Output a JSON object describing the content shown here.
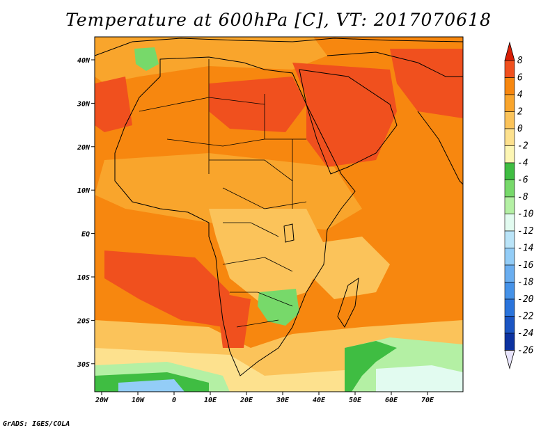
{
  "title": "Temperature at 600hPa [C], VT: 2017070618",
  "credit": "GrADS: IGES/COLA",
  "map": {
    "lon_ticks": [
      "20W",
      "10W",
      "0",
      "10E",
      "20E",
      "30E",
      "40E",
      "50E",
      "60E",
      "70E"
    ],
    "lat_ticks": [
      "40N",
      "30N",
      "20N",
      "10N",
      "EQ",
      "10S",
      "20S",
      "30S"
    ]
  },
  "colorbar": {
    "labels": [
      "8",
      "6",
      "4",
      "2",
      "0",
      "-2",
      "-4",
      "-6",
      "-8",
      "-10",
      "-12",
      "-14",
      "-16",
      "-18",
      "-20",
      "-22",
      "-24",
      "-26"
    ],
    "colors": {
      "top_arrow": "#d81e05",
      "bins": [
        "#f0501e",
        "#f7870f",
        "#f9a52c",
        "#fbc35a",
        "#fde18e",
        "#fdf6b4",
        "#3fbd42",
        "#77d96a",
        "#b4f0a4",
        "#e2fbf0",
        "#bae4f8",
        "#93cdf7",
        "#6aaef0",
        "#4592e8",
        "#2a74dc",
        "#1b55c3",
        "#0c32a0"
      ],
      "bottom_arrow": "#e8e4fb",
      "ocean_base": "#f7870f"
    }
  }
}
